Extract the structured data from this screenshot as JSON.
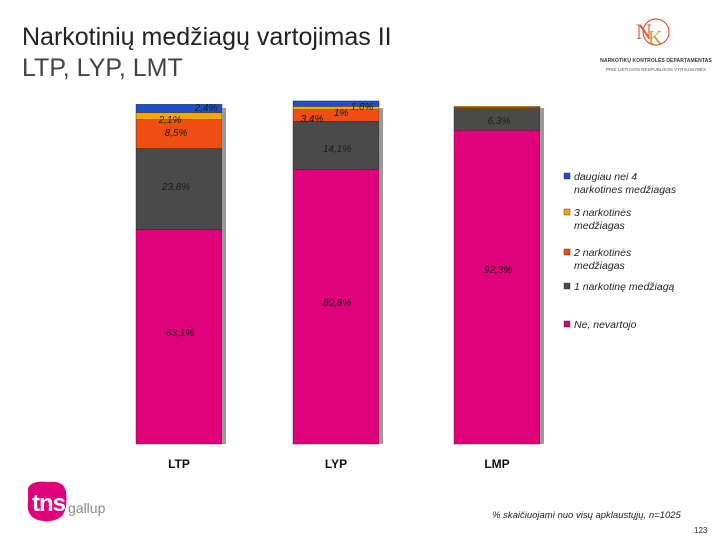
{
  "title": "Narkotinių medžiagų vartojimas II",
  "subtitle": "LTP, LYP, LMT",
  "logo": {
    "letters": "NKD",
    "line1": "NARKOTIKŲ KONTROLĖS DEPARTAMENTAS",
    "line2": "PRIE LIETUVOS RESPUBLIKOS VYRIAUSYBĖS"
  },
  "brand": {
    "tns": "tns",
    "gallup": "gallup",
    "color": "#e0007a"
  },
  "footnote": "% skaičiuojami nuo visų apklaustųjų, n=1025",
  "page_number": "123",
  "chart_data": {
    "type": "stacked-bar",
    "categories": [
      "LTP",
      "LYP",
      "LMP"
    ],
    "ylim": [
      0,
      100
    ],
    "grid": false,
    "legend_position": "right",
    "series": [
      {
        "name": "Ne, nevartojo",
        "color": "#e0007a",
        "values": [
          63.1,
          80.8,
          92.3
        ],
        "labels": [
          "63,1%",
          "80,8%",
          "92,3%"
        ]
      },
      {
        "name": "1 narkotinę medžiagą",
        "color": "#4a4a4a",
        "values": [
          23.8,
          14.1,
          6.3
        ],
        "labels": [
          "23,8%",
          "14,1%",
          "6,3%"
        ]
      },
      {
        "name": "2 narkotinės medžiagas",
        "color": "#f04e12",
        "values": [
          8.5,
          3.4,
          0.4
        ],
        "labels": [
          "8,5%",
          "3,4%",
          ""
        ]
      },
      {
        "name": "3 narkotinės medžiagas",
        "color": "#f6a800",
        "values": [
          2.1,
          1.0,
          0.3
        ],
        "labels": [
          "2,1%",
          "1%",
          ""
        ]
      },
      {
        "name": "daugiau nei 4 narkotines medžiagas",
        "color": "#1f4fc8",
        "values": [
          2.4,
          1.6,
          0.0
        ],
        "labels": [
          "2,4%",
          "1,6%",
          ""
        ]
      }
    ]
  }
}
